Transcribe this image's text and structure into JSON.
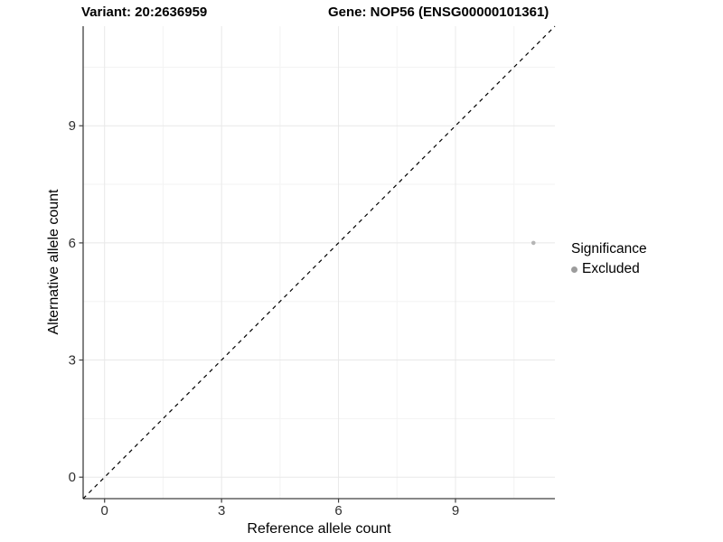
{
  "chart_data": {
    "type": "scatter",
    "title_left": "Variant: 20:2636959",
    "title_right": "Gene: NOP56 (ENSG00000101361)",
    "xlabel": "Reference allele count",
    "ylabel": "Alternative allele count",
    "xlim": [
      -0.55,
      11.55
    ],
    "ylim": [
      -0.55,
      11.55
    ],
    "x_ticks": [
      0,
      3,
      6,
      9
    ],
    "y_ticks": [
      0,
      3,
      6,
      9
    ],
    "x_minor_gridlines": [
      1.5,
      4.5,
      7.5,
      10.5
    ],
    "y_minor_gridlines": [
      1.5,
      4.5,
      7.5,
      10.5
    ],
    "grid": true,
    "reference_line": {
      "type": "abline",
      "intercept": 0,
      "slope": 1,
      "style": "dashed",
      "color": "#000000"
    },
    "points": [
      {
        "x": 11,
        "y": 6,
        "significance": "Excluded"
      }
    ],
    "legend": {
      "title": "Significance",
      "position": "right",
      "items": [
        {
          "label": "Excluded",
          "color": "#9c9c9c"
        }
      ]
    },
    "colors": {
      "point": "#b5b5b5",
      "major_grid": "#e8e8e8",
      "minor_grid": "#f3f3f3",
      "axis_line": "#404040",
      "tick_label": "#303030",
      "background": "#ffffff"
    }
  }
}
